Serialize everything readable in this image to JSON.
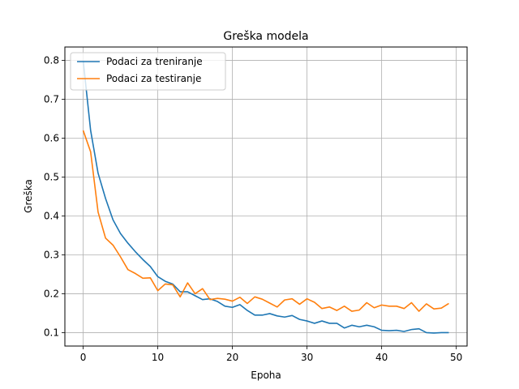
{
  "chart_data": {
    "type": "line",
    "title": "Greška modela",
    "xlabel": "Epoha",
    "ylabel": "Greška",
    "xlim": [
      -2.45,
      51.45
    ],
    "ylim": [
      0.0655,
      0.8345
    ],
    "x_ticks": [
      0,
      10,
      20,
      30,
      40,
      50
    ],
    "y_ticks": [
      0.1,
      0.2,
      0.3,
      0.4,
      0.5,
      0.6,
      0.7,
      0.8
    ],
    "x_tick_labels": [
      "0",
      "10",
      "20",
      "30",
      "40",
      "50"
    ],
    "y_tick_labels": [
      "0.1",
      "0.2",
      "0.3",
      "0.4",
      "0.5",
      "0.6",
      "0.7",
      "0.8"
    ],
    "grid": true,
    "legend_position": "top-left",
    "x": [
      0,
      1,
      2,
      3,
      4,
      5,
      6,
      7,
      8,
      9,
      10,
      11,
      12,
      13,
      14,
      15,
      16,
      17,
      18,
      19,
      20,
      21,
      22,
      23,
      24,
      25,
      26,
      27,
      28,
      29,
      30,
      31,
      32,
      33,
      34,
      35,
      36,
      37,
      38,
      39,
      40,
      41,
      42,
      43,
      44,
      45,
      46,
      47,
      48,
      49
    ],
    "series": [
      {
        "name": "Podaci za treniranje",
        "color": "#1f77b4",
        "values": [
          0.8,
          0.62,
          0.51,
          0.445,
          0.39,
          0.355,
          0.33,
          0.308,
          0.288,
          0.27,
          0.244,
          0.232,
          0.225,
          0.205,
          0.205,
          0.195,
          0.185,
          0.187,
          0.18,
          0.168,
          0.165,
          0.172,
          0.157,
          0.145,
          0.145,
          0.149,
          0.143,
          0.14,
          0.144,
          0.134,
          0.13,
          0.124,
          0.13,
          0.124,
          0.124,
          0.112,
          0.119,
          0.115,
          0.119,
          0.115,
          0.106,
          0.105,
          0.106,
          0.103,
          0.108,
          0.11,
          0.1,
          0.099,
          0.1,
          0.1
        ]
      },
      {
        "name": "Podaci za testiranje",
        "color": "#ff7f0e",
        "values": [
          0.62,
          0.565,
          0.41,
          0.343,
          0.325,
          0.295,
          0.262,
          0.252,
          0.24,
          0.241,
          0.208,
          0.225,
          0.223,
          0.192,
          0.228,
          0.2,
          0.213,
          0.185,
          0.188,
          0.186,
          0.181,
          0.191,
          0.175,
          0.192,
          0.186,
          0.176,
          0.166,
          0.184,
          0.187,
          0.173,
          0.187,
          0.178,
          0.162,
          0.166,
          0.157,
          0.168,
          0.155,
          0.158,
          0.177,
          0.164,
          0.171,
          0.168,
          0.168,
          0.162,
          0.177,
          0.155,
          0.174,
          0.161,
          0.163,
          0.175
        ]
      }
    ]
  }
}
